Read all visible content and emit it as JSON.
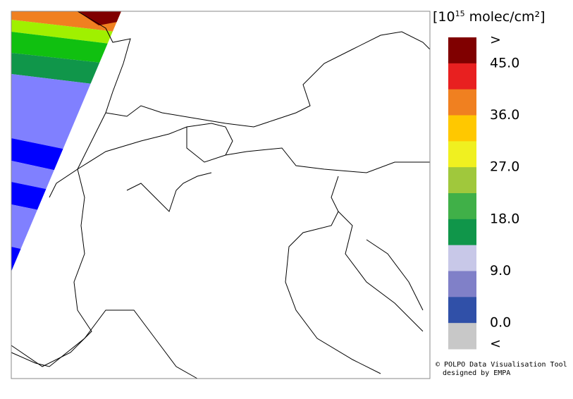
{
  "colorbar": {
    "unit": {
      "prefix": "[10",
      "exponent": "15",
      "suffix": " molec/cm²]"
    },
    "colors": [
      "#800000",
      "#e82020",
      "#f08020",
      "#ffc800",
      "#f0f020",
      "#a0c83c",
      "#40b048",
      "#10964a",
      "#c8c8e8",
      "#8080c8",
      "#3050a8",
      "#c8c8c8"
    ],
    "labels": [
      ">",
      "45.0",
      "36.0",
      "27.0",
      "18.0",
      "9.0",
      "0.0",
      "<"
    ]
  },
  "credit": {
    "line1": "© POLPO Data Visualisation Tool",
    "line2": "designed by EMPA"
  }
}
